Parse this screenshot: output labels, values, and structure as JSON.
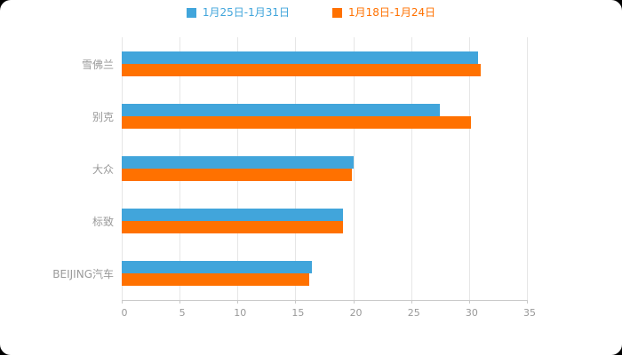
{
  "chart_data": {
    "type": "bar",
    "orientation": "horizontal",
    "title": "",
    "xlabel": "",
    "ylabel": "",
    "categories": [
      "雪佛兰",
      "别克",
      "大众",
      "标致",
      "BEIJING汽车"
    ],
    "series": [
      {
        "name": "1月25日-1月31日",
        "color": "#41A5DB",
        "values": [
          30.8,
          27.5,
          20.0,
          19.1,
          16.4
        ]
      },
      {
        "name": "1月18日-1月24日",
        "color": "#FF7100",
        "values": [
          31.0,
          30.2,
          19.9,
          19.1,
          16.2
        ]
      }
    ],
    "xlim": [
      0,
      35
    ],
    "xticks": [
      0,
      5,
      10,
      15,
      20,
      25,
      30,
      35
    ],
    "grid": true,
    "legend_position": "top",
    "colors": {
      "background": "#ffffff",
      "gridline": "#e6e6e6",
      "axis": "#c9c9c9",
      "label_text": "#999999"
    }
  }
}
